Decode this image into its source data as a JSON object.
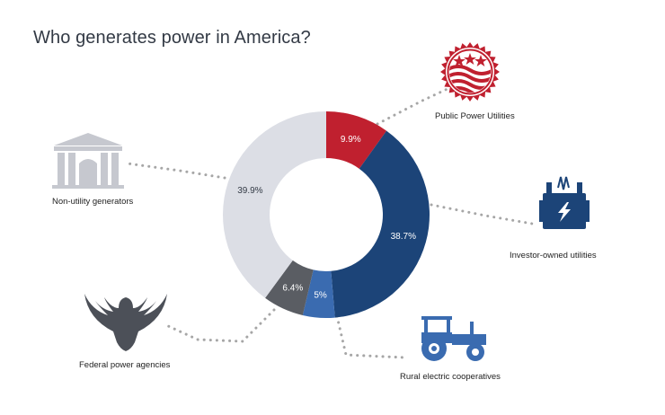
{
  "title": "Who generates power in America?",
  "colors": {
    "public": "#c0202f",
    "investor": "#1c4478",
    "rural": "#3a6bb0",
    "federal": "#5a5d63",
    "nonutility": "#dcdee5",
    "connector": "#a6a6a6",
    "icon_gray": "#c6c8cf",
    "icon_dark": "#4c5058"
  },
  "chart_data": {
    "type": "pie",
    "donut": true,
    "title": "Who generates power in America?",
    "slices": [
      {
        "name": "Public Power Utilities",
        "value": 9.9,
        "label": "9.9%",
        "color": "#c0202f"
      },
      {
        "name": "Investor-owned utilities",
        "value": 38.7,
        "label": "38.7%",
        "color": "#1c4478"
      },
      {
        "name": "Rural electric cooperatives",
        "value": 5,
        "label": "5%",
        "color": "#3a6bb0"
      },
      {
        "name": "Federal power agencies",
        "value": 6.4,
        "label": "6.4%",
        "color": "#5a5d63"
      },
      {
        "name": "Non-utility generators",
        "value": 39.9,
        "label": "39.9%",
        "color": "#dcdee5"
      }
    ]
  },
  "icons": {
    "public": "seal-flag-icon",
    "investor": "power-transformer-icon",
    "rural": "tractor-icon",
    "federal": "eagle-icon",
    "nonutility": "building-columns-icon"
  }
}
